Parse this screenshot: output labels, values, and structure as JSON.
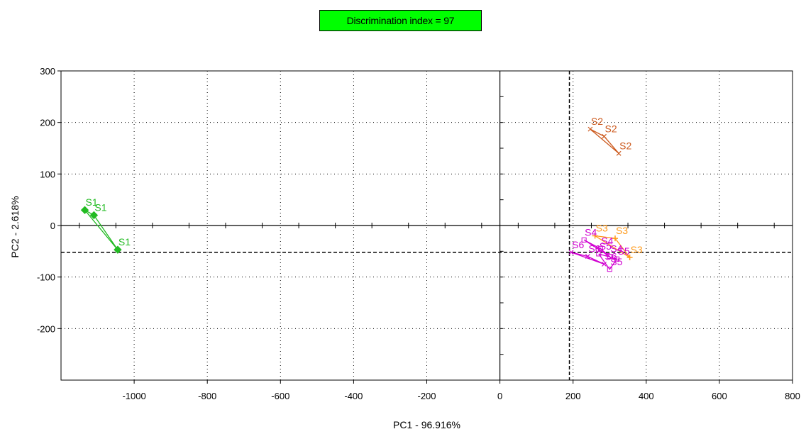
{
  "badge": {
    "text": "Discrimination index = 97",
    "color": "#00ff00"
  },
  "chart_data": {
    "type": "scatter",
    "title": "",
    "xlabel": "PC1 - 96.916%",
    "ylabel": "PC2 - 2.618%",
    "xlim": [
      -1200,
      800
    ],
    "ylim": [
      -300,
      300
    ],
    "xticks": [
      -1000,
      -800,
      -600,
      -400,
      -200,
      0,
      200,
      400,
      600,
      800
    ],
    "xtick_labels": [
      "-1000",
      "-800",
      "-600",
      "-400",
      "-200",
      "0",
      "200",
      "400",
      "600",
      "800"
    ],
    "yticks": [
      300,
      200,
      100,
      0,
      -100,
      -200
    ],
    "ytick_labels": [
      "300",
      "200",
      "100",
      "0",
      "-100",
      "-200"
    ],
    "grid": true,
    "reference_lines": {
      "x": 190,
      "y": -52
    },
    "series": [
      {
        "name": "S1",
        "color": "#22bb22",
        "marker": "diamond",
        "points": [
          [
            -1135,
            30
          ],
          [
            -1110,
            20
          ],
          [
            -1045,
            -47
          ]
        ]
      },
      {
        "name": "S2",
        "color": "#cc5a1e",
        "marker": "cross",
        "points": [
          [
            247,
            187
          ],
          [
            285,
            173
          ],
          [
            325,
            140
          ]
        ]
      },
      {
        "name": "S3",
        "color": "#ff9a1a",
        "marker": "plus",
        "points": [
          [
            260,
            -20
          ],
          [
            315,
            -25
          ],
          [
            355,
            -62
          ]
        ]
      },
      {
        "name": "S4",
        "color": "#d000d0",
        "marker": "square",
        "points": [
          [
            230,
            -28
          ],
          [
            275,
            -45
          ],
          [
            300,
            -60
          ]
        ]
      },
      {
        "name": "S5",
        "color": "#d000d0",
        "marker": "square",
        "points": [
          [
            270,
            -55
          ],
          [
            300,
            -85
          ],
          [
            320,
            -65
          ]
        ]
      },
      {
        "name": "S6",
        "color": "#d000d0",
        "marker": "cross",
        "points": [
          [
            195,
            -52
          ],
          [
            240,
            -60
          ],
          [
            285,
            -75
          ]
        ]
      }
    ]
  }
}
